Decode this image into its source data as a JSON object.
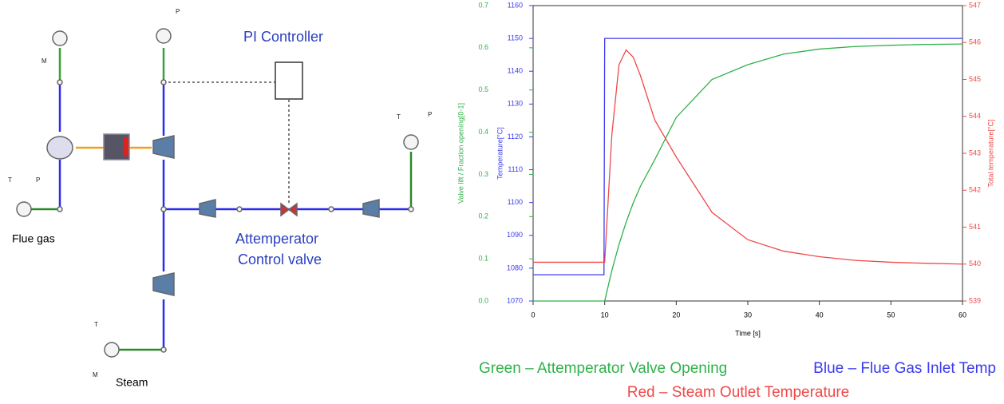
{
  "diagram": {
    "controller_label": "PI Controller",
    "valve_label": [
      "Attemperator",
      "Control valve"
    ],
    "flue_gas_label": "Flue gas",
    "steam_label": "Steam",
    "sensor_letters": [
      "M",
      "P",
      "T",
      "P",
      "T",
      "P",
      "T",
      "M"
    ]
  },
  "chart_data": {
    "type": "line",
    "xlabel": "Time [s]",
    "ylabel": "Valve lift / Fraction opening[0-1]",
    "y2label": "Temperature[°C]",
    "y3label": "Total temperature[°C]",
    "x": [
      0,
      9.9,
      10,
      11,
      12,
      13,
      14,
      15,
      17,
      20,
      25,
      30,
      35,
      40,
      45,
      50,
      55,
      60
    ],
    "xlim": [
      0,
      60
    ],
    "xticks": [
      0,
      10,
      20,
      30,
      40,
      50,
      60
    ],
    "ylim": [
      0,
      0.7
    ],
    "yticks": [
      {
        "value": 0,
        "label": "0.0"
      },
      0.1,
      0.2,
      0.3,
      0.4,
      0.5,
      0.6,
      0.7
    ],
    "y2lim": [
      1070,
      1160
    ],
    "y2ticks": [
      1070,
      1080,
      1090,
      1100,
      1110,
      1120,
      1130,
      1140,
      1150,
      1160
    ],
    "y3lim": [
      539,
      547
    ],
    "y3ticks": [
      539,
      540,
      541,
      542,
      543,
      544,
      545,
      546,
      547
    ],
    "series": [
      {
        "name": "Green – Attemperator Valve Opening",
        "color": "#2fb24a",
        "axis": "y",
        "values": [
          0,
          0,
          0,
          0.072,
          0.134,
          0.187,
          0.233,
          0.272,
          0.335,
          0.435,
          0.525,
          0.56,
          0.585,
          0.597,
          0.603,
          0.606,
          0.608,
          0.609
        ]
      },
      {
        "name": "Blue – Flue Gas Inlet Temp",
        "color": "#3a3af0",
        "axis": "y2",
        "values": [
          1078,
          1078,
          1150,
          1150,
          1150,
          1150,
          1150,
          1150,
          1150,
          1150,
          1150,
          1150,
          1150,
          1150,
          1150,
          1150,
          1150,
          1150
        ]
      },
      {
        "name": "Red – Steam Outlet Temperature",
        "color": "#f04848",
        "axis": "y3",
        "values": [
          540.05,
          540.05,
          540.05,
          543.5,
          545.4,
          545.8,
          545.6,
          545.1,
          543.9,
          542.9,
          541.4,
          540.66,
          540.35,
          540.2,
          540.1,
          540.05,
          540.02,
          540.0
        ]
      }
    ]
  }
}
